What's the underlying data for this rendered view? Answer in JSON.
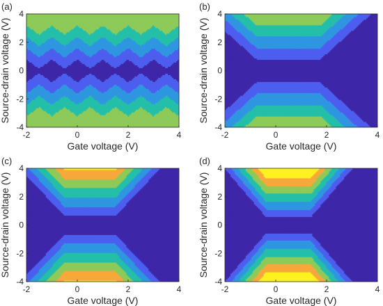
{
  "figure": {
    "background": "#ffffff",
    "colormap": [
      "#3e26a8",
      "#4d5eef",
      "#2f96e0",
      "#24bfa9",
      "#8dca59",
      "#f6a83b",
      "#fdf21e"
    ],
    "boundary_color": "#1a1a40"
  },
  "chart_data": [
    {
      "panel_label": "(a)",
      "type": "heatmap",
      "title": "",
      "xlabel": "Gate voltage (V)",
      "ylabel": "Source-drain voltage (V)",
      "xlim": [
        -2,
        4
      ],
      "ylim": [
        -4,
        4
      ],
      "xticks": [
        -2,
        0,
        2,
        4
      ],
      "yticks": [
        -4,
        -2,
        0,
        2,
        4
      ],
      "x_tick_labels": [
        "-2",
        "0",
        "2",
        "4"
      ],
      "y_tick_labels": [
        "-4",
        "-2",
        "0",
        "2",
        "4"
      ],
      "diamond_period": 1.0,
      "diamond_centers_x": [
        -2,
        -1,
        0,
        1,
        2,
        3,
        4
      ],
      "line_slope": 1.3,
      "bias_step": 0.8,
      "max_level": 4,
      "levels": 7
    },
    {
      "panel_label": "(b)",
      "type": "heatmap",
      "title": "",
      "xlabel": "Gate voltage (V)",
      "ylabel": "Source-drain voltage (V)",
      "xlim": [
        -2,
        4
      ],
      "ylim": [
        -4,
        4
      ],
      "xticks": [
        -2,
        0,
        2,
        4
      ],
      "yticks": [
        -4,
        -2,
        0,
        2,
        4
      ],
      "x_tick_labels": [
        "-2",
        "0",
        "2",
        "4"
      ],
      "y_tick_labels": [
        "-4",
        "-2",
        "0",
        "2",
        "4"
      ],
      "diamond_period": 0.5,
      "diamond_centers_x": [
        -0.5,
        0,
        0.5,
        1,
        1.5
      ],
      "line_slope": 1.6,
      "bias_step": 0.8,
      "max_level": 6,
      "levels": 7
    },
    {
      "panel_label": "(c)",
      "type": "heatmap",
      "title": "",
      "xlabel": "Gate voltage (V)",
      "ylabel": "Source-drain voltage (V)",
      "xlim": [
        -2,
        4
      ],
      "ylim": [
        -4,
        4
      ],
      "xticks": [
        -2,
        0,
        2,
        4
      ],
      "yticks": [
        -4,
        -2,
        0,
        2,
        4
      ],
      "x_tick_labels": [
        "-2",
        "0",
        "2",
        "4"
      ],
      "y_tick_labels": [
        "-4",
        "-2",
        "0",
        "2",
        "4"
      ],
      "diamond_period": 0.333,
      "diamond_centers_x": [
        -0.333,
        0,
        0.333,
        0.667,
        1.0,
        1.333
      ],
      "line_slope": 1.9,
      "bias_step": 0.65,
      "max_level": 6,
      "levels": 7
    },
    {
      "panel_label": "(d)",
      "type": "heatmap",
      "title": "",
      "xlabel": "Gate voltage (V)",
      "ylabel": "Source-drain voltage (V)",
      "xlim": [
        -2,
        4
      ],
      "ylim": [
        -4,
        4
      ],
      "xticks": [
        -2,
        0,
        2,
        4
      ],
      "yticks": [
        -4,
        -2,
        0,
        2,
        4
      ],
      "x_tick_labels": [
        "-2",
        "0",
        "2",
        "4"
      ],
      "y_tick_labels": [
        "-4",
        "-2",
        "0",
        "2",
        "4"
      ],
      "diamond_period": 0.25,
      "diamond_centers_x": [
        -0.25,
        0,
        0.25,
        0.5,
        0.75,
        1.0,
        1.25
      ],
      "line_slope": 2.1,
      "bias_step": 0.55,
      "max_level": 6,
      "levels": 7
    }
  ]
}
